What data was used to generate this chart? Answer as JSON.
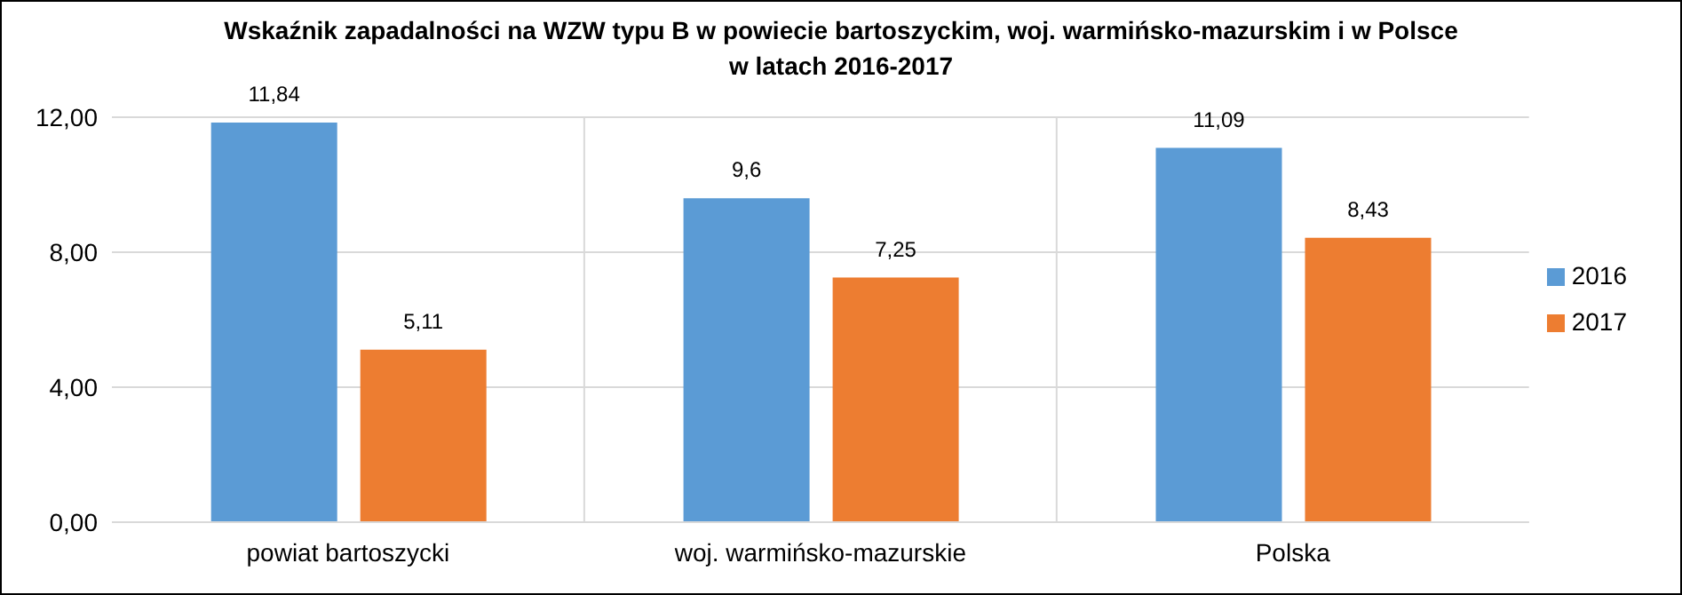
{
  "chart_data": {
    "type": "bar",
    "title": "Wskaźnik zapadalności na WZW typu B w powiecie bartoszyckim, woj. warmińsko-mazurskim i w Polsce\nw latach 2016-2017",
    "categories": [
      "powiat bartoszycki",
      "woj. warmińsko-mazurskie",
      "Polska"
    ],
    "series": [
      {
        "name": "2016",
        "color": "#5b9bd5",
        "values": [
          11.84,
          9.6,
          11.09
        ],
        "value_labels": [
          "11,84",
          "9,6",
          "11,09"
        ]
      },
      {
        "name": "2017",
        "color": "#ed7d31",
        "values": [
          5.11,
          7.25,
          8.43
        ],
        "value_labels": [
          "5,11",
          "7,25",
          "8,43"
        ]
      }
    ],
    "ylim": [
      0,
      12
    ],
    "yticks": [
      {
        "value": 0,
        "label": "0,00"
      },
      {
        "value": 4,
        "label": "4,00"
      },
      {
        "value": 8,
        "label": "8,00"
      },
      {
        "value": 12,
        "label": "12,00"
      }
    ],
    "grid": true,
    "legend": "right"
  }
}
